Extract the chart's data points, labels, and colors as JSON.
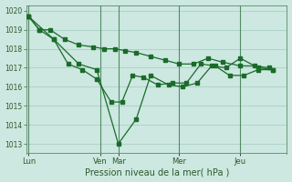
{
  "background_color": "#cce8e0",
  "grid_color": "#aacec8",
  "line_color": "#1a6b2a",
  "vline_color": "#2d6e3a",
  "xlabel": "Pression niveau de la mer( hPa )",
  "ylim": [
    1012.5,
    1020.3
  ],
  "yticks": [
    1013,
    1014,
    1015,
    1016,
    1017,
    1018,
    1019,
    1020
  ],
  "day_labels": [
    "Lun",
    "Ven",
    "Mar",
    "Mer",
    "Jeu"
  ],
  "day_positions": [
    0.0,
    10.0,
    12.5,
    21.0,
    29.5
  ],
  "vline_positions": [
    0.0,
    10.0,
    12.5,
    21.0,
    29.5
  ],
  "xlim": [
    -0.3,
    36
  ],
  "series1_x": [
    0.0,
    1.5,
    3.0,
    5.0,
    7.0,
    9.0,
    10.5,
    12.0,
    13.5,
    15.0,
    17.0,
    19.0,
    21.0,
    23.0,
    25.0,
    27.0,
    29.5,
    31.5,
    33.5
  ],
  "series1_y": [
    1019.7,
    1019.0,
    1019.0,
    1018.5,
    1018.2,
    1018.1,
    1018.0,
    1018.0,
    1017.9,
    1017.8,
    1017.6,
    1017.4,
    1017.2,
    1017.2,
    1017.5,
    1017.3,
    1017.1,
    1017.1,
    1017.0
  ],
  "series2_x": [
    0.0,
    1.5,
    3.5,
    5.5,
    7.5,
    9.5,
    11.5,
    13.0,
    14.5,
    16.0,
    18.0,
    20.0,
    22.0,
    24.0,
    26.0,
    28.0,
    30.0,
    32.0,
    34.0
  ],
  "series2_y": [
    1019.7,
    1019.0,
    1018.5,
    1017.2,
    1016.9,
    1016.4,
    1015.2,
    1015.2,
    1016.6,
    1016.5,
    1016.1,
    1016.2,
    1016.2,
    1017.2,
    1017.1,
    1016.6,
    1016.6,
    1016.9,
    1016.9
  ],
  "series3_x": [
    0.0,
    3.5,
    7.0,
    9.5,
    12.5,
    15.0,
    17.0,
    19.5,
    21.5,
    23.5,
    25.5,
    27.5,
    29.5,
    32.0,
    34.0
  ],
  "series3_y": [
    1019.7,
    1018.5,
    1017.2,
    1016.9,
    1013.0,
    1014.3,
    1016.6,
    1016.1,
    1016.0,
    1016.2,
    1017.1,
    1017.0,
    1017.5,
    1017.0,
    1016.9
  ]
}
